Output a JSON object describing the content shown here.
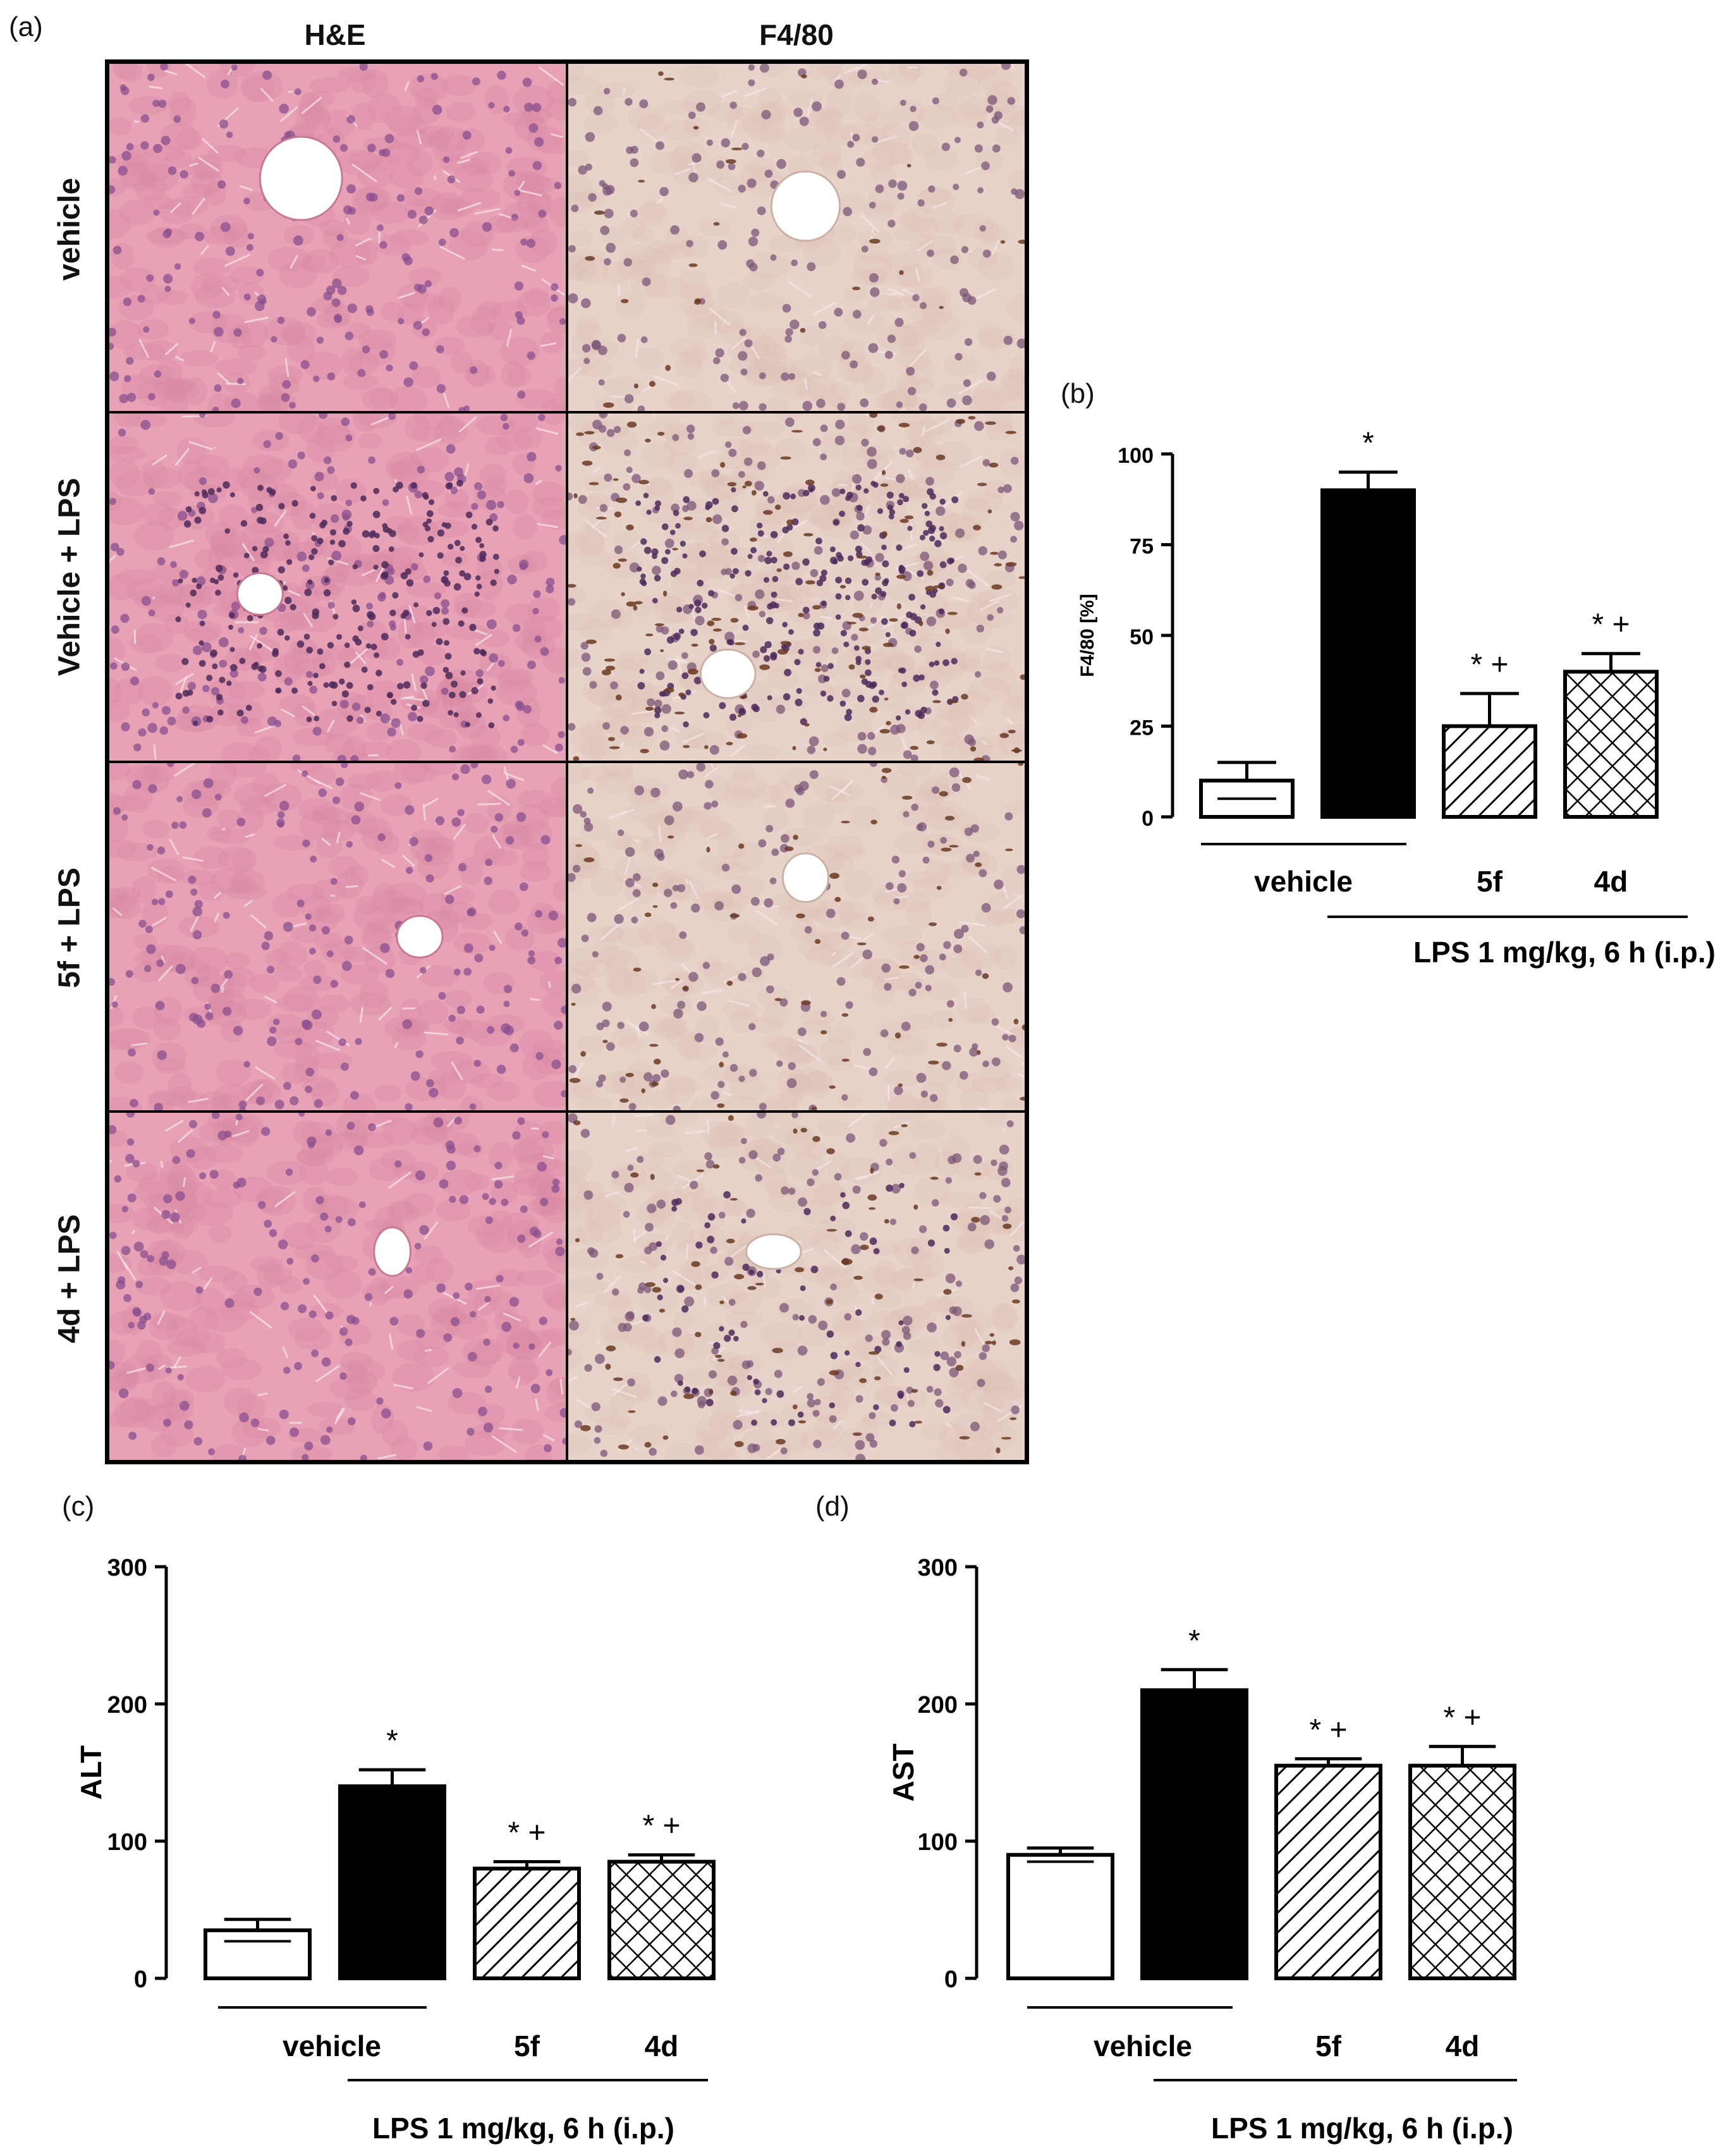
{
  "figure": {
    "panel_a": "(a)",
    "panel_b": "(b)",
    "panel_c": "(c)",
    "panel_d": "(d)",
    "col_headers": [
      "H&E",
      "F4/80"
    ],
    "row_labels": [
      "vehicle",
      "Vehicle + LPS",
      "5f + LPS",
      "4d + LPS"
    ]
  },
  "colors": {
    "he_base": "#e7a2b6",
    "he_nuclei": "#8a4f8e",
    "f480_base": "#e8d3cb",
    "f480_nuclei": "#7c5677",
    "f480_stain": "#6b3a22",
    "bar_fill_black": "#000000",
    "bar_fill_white": "#ffffff"
  },
  "chart_data": [
    {
      "panel": "(b)",
      "type": "bar",
      "ylabel": "F4/80 [%]",
      "ylim": [
        0,
        100
      ],
      "yticks": [
        0,
        25,
        50,
        75,
        100
      ],
      "categories": [
        "vehicle",
        "Vehicle + LPS",
        "5f + LPS",
        "4d + LPS"
      ],
      "values": [
        10,
        90,
        25,
        40
      ],
      "errors": [
        5,
        5,
        9,
        5
      ],
      "patterns": [
        "white",
        "black",
        "diagonal",
        "crosshatch"
      ],
      "annotations": [
        "",
        "*",
        "*+",
        "*+"
      ],
      "group_labels": {
        "vehicle": "vehicle",
        "g5f": "5f",
        "g4d": "4d",
        "lps": "LPS 1 mg/kg, 6 h (i.p.)"
      }
    },
    {
      "panel": "(c)",
      "type": "bar",
      "ylabel": "ALT",
      "ylim": [
        0,
        300
      ],
      "yticks": [
        0,
        100,
        200,
        300
      ],
      "categories": [
        "vehicle",
        "Vehicle + LPS",
        "5f + LPS",
        "4d + LPS"
      ],
      "values": [
        35,
        140,
        80,
        85
      ],
      "errors": [
        8,
        12,
        5,
        5
      ],
      "patterns": [
        "white",
        "black",
        "diagonal",
        "crosshatch"
      ],
      "annotations": [
        "",
        "*",
        "*+",
        "*+"
      ],
      "group_labels": {
        "vehicle": "vehicle",
        "g5f": "5f",
        "g4d": "4d",
        "lps": "LPS 1 mg/kg, 6 h (i.p.)"
      }
    },
    {
      "panel": "(d)",
      "type": "bar",
      "ylabel": "AST",
      "ylim": [
        0,
        300
      ],
      "yticks": [
        0,
        100,
        200,
        300
      ],
      "categories": [
        "vehicle",
        "Vehicle + LPS",
        "5f + LPS",
        "4d + LPS"
      ],
      "values": [
        90,
        210,
        155,
        155
      ],
      "errors": [
        5,
        15,
        5,
        14
      ],
      "patterns": [
        "white",
        "black",
        "diagonal",
        "crosshatch"
      ],
      "annotations": [
        "",
        "*",
        "*+",
        "*+"
      ],
      "group_labels": {
        "vehicle": "vehicle",
        "g5f": "5f",
        "g4d": "4d",
        "lps": "LPS 1 mg/kg, 6 h (i.p.)"
      }
    }
  ]
}
